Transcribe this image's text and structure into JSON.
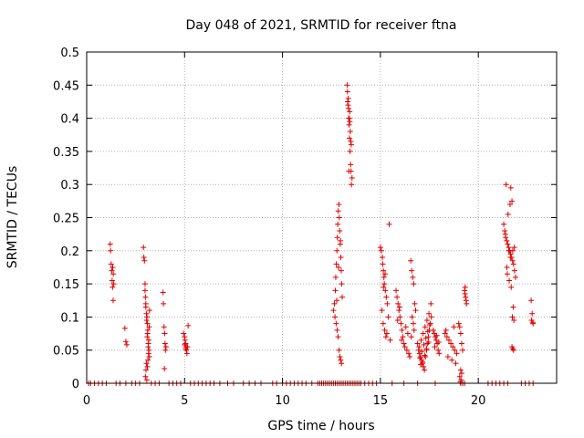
{
  "chart_data": {
    "type": "scatter",
    "title": "Day 048 of 2021, SRMTID for receiver ftna",
    "xlabel": "GPS time / hours",
    "ylabel": "SRMTID / TECUs",
    "xlim": [
      0,
      24
    ],
    "ylim": [
      0,
      0.5
    ],
    "grid": true,
    "marker": "+",
    "color": "#e00000",
    "x_ticks": [
      0,
      5,
      10,
      15,
      20
    ],
    "x_tick_labels": [
      "0",
      "5",
      "10",
      "15",
      "20"
    ],
    "y_ticks": [
      0,
      0.05,
      0.1,
      0.15,
      0.2,
      0.25,
      0.3,
      0.35,
      0.4,
      0.45,
      0.5
    ],
    "y_tick_labels": [
      "0",
      "0.05",
      "0.1",
      "0.15",
      "0.2",
      "0.25",
      "0.3",
      "0.35",
      "0.4",
      "0.45",
      "0.5"
    ],
    "series": [
      {
        "name": "SRMTID",
        "x": [
          0.1,
          0.2,
          0.4,
          0.6,
          0.8,
          1.0,
          1.5,
          1.7,
          2.0,
          2.3,
          2.5,
          2.7,
          3.3,
          3.5,
          3.7,
          4.2,
          4.4,
          4.6,
          4.8,
          5.3,
          5.5,
          5.7,
          5.9,
          6.1,
          6.3,
          6.5,
          6.8,
          7.2,
          7.5,
          8.0,
          8.3,
          8.6,
          8.9,
          9.5,
          9.7,
          10.0,
          10.2,
          10.4,
          10.6,
          10.8,
          11.0,
          11.2,
          11.5,
          11.8,
          11.9,
          12.0,
          12.1,
          12.2,
          12.3,
          12.4,
          12.5,
          12.6,
          12.7,
          12.8,
          12.9,
          13.0,
          13.1,
          13.2,
          13.3,
          13.4,
          13.5,
          13.6,
          13.7,
          13.8,
          13.9,
          14.0,
          14.2,
          14.4,
          14.6,
          14.8,
          15.6,
          16.2,
          16.9,
          17.8,
          19.1,
          19.2,
          19.3,
          20.5,
          20.7,
          20.9,
          21.1,
          21.3,
          21.5,
          22.2,
          22.4,
          22.6,
          22.8,
          1.2,
          1.22,
          1.25,
          1.28,
          1.3,
          1.32,
          1.33,
          1.35,
          1.36,
          1.38,
          1.95,
          2.0,
          2.05,
          2.9,
          2.92,
          2.95,
          2.98,
          3.0,
          3.02,
          3.05,
          3.08,
          3.1,
          3.12,
          3.15,
          3.18,
          3.2,
          3.05,
          3.03,
          3.0,
          3.07,
          3.1,
          3.13,
          3.16,
          2.98,
          3.02,
          3.06,
          3.09,
          3.11,
          3.14,
          3.17,
          3.19,
          3.21,
          3.9,
          3.92,
          3.95,
          3.98,
          4.0,
          4.02,
          4.05,
          3.97,
          4.95,
          5.0,
          5.02,
          5.05,
          5.08,
          5.1,
          5.12,
          5.15,
          5.18,
          5.0,
          5.06,
          12.6,
          12.65,
          12.7,
          12.72,
          12.75,
          12.78,
          12.8,
          12.82,
          12.85,
          12.88,
          12.9,
          12.92,
          12.95,
          12.98,
          13.0,
          13.02,
          13.05,
          12.68,
          12.74,
          12.79,
          12.84,
          12.89,
          12.93,
          12.97,
          13.01,
          12.77,
          12.86,
          12.96,
          13.3,
          13.32,
          13.35,
          13.38,
          13.4,
          13.42,
          13.45,
          13.48,
          13.5,
          13.52,
          13.55,
          13.33,
          13.37,
          13.41,
          13.46,
          13.51,
          13.36,
          13.44,
          13.49,
          13.39,
          13.43,
          15.0,
          15.05,
          15.1,
          15.12,
          15.15,
          15.18,
          15.2,
          15.25,
          15.3,
          15.35,
          15.4,
          15.08,
          15.14,
          15.22,
          15.28,
          15.33,
          15.45,
          15.16,
          15.24,
          15.5,
          15.8,
          15.85,
          15.9,
          15.95,
          16.0,
          16.05,
          16.1,
          16.15,
          16.2,
          16.3,
          16.4,
          15.88,
          15.98,
          16.08,
          16.25,
          16.35,
          16.45,
          16.5,
          16.55,
          16.6,
          16.65,
          16.7,
          16.75,
          16.8,
          16.62,
          16.68,
          16.72,
          16.58,
          16.9,
          16.95,
          17.0,
          17.05,
          17.1,
          17.15,
          17.2,
          17.25,
          17.3,
          17.35,
          17.4,
          17.45,
          17.5,
          17.55,
          17.6,
          16.98,
          17.08,
          17.18,
          17.28,
          17.38,
          17.48,
          17.02,
          17.12,
          17.22,
          17.32,
          17.42,
          17.52,
          17.58,
          17.06,
          17.16,
          17.26,
          17.36,
          17.46,
          17.7,
          17.75,
          17.8,
          17.85,
          17.9,
          17.95,
          18.0,
          17.78,
          17.88,
          17.98,
          18.3,
          18.4,
          18.5,
          18.6,
          18.7,
          18.8,
          18.9,
          18.45,
          18.65,
          18.85,
          18.35,
          18.75,
          19.0,
          19.05,
          19.1,
          19.15,
          19.2,
          19.1,
          19.05,
          19.15,
          19.12,
          19.08,
          19.3,
          19.32,
          19.35,
          19.38,
          19.4,
          19.33,
          21.3,
          21.35,
          21.4,
          21.45,
          21.5,
          21.55,
          21.6,
          21.65,
          21.7,
          21.75,
          21.8,
          21.85,
          21.9,
          21.38,
          21.48,
          21.58,
          21.68,
          21.78,
          21.52,
          21.62,
          21.72,
          21.42,
          21.66,
          21.74,
          21.82,
          21.46,
          21.56,
          21.64,
          21.76,
          21.84,
          21.72,
          21.76,
          21.8,
          22.7,
          22.75,
          22.8,
          22.72,
          22.78
        ],
        "y": [
          0,
          0,
          0,
          0,
          0,
          0,
          0,
          0,
          0,
          0,
          0,
          0,
          0,
          0,
          0,
          0,
          0,
          0,
          0,
          0,
          0,
          0,
          0,
          0,
          0,
          0,
          0,
          0,
          0,
          0,
          0,
          0,
          0,
          0,
          0,
          0,
          0,
          0,
          0,
          0,
          0,
          0,
          0,
          0,
          0,
          0,
          0,
          0,
          0,
          0,
          0,
          0,
          0,
          0,
          0,
          0,
          0,
          0,
          0,
          0,
          0,
          0,
          0,
          0,
          0,
          0,
          0,
          0,
          0,
          0,
          0,
          0,
          0,
          0,
          0,
          0,
          0,
          0,
          0,
          0,
          0,
          0,
          0,
          0,
          0,
          0,
          0,
          0.21,
          0.2,
          0.18,
          0.17,
          0.155,
          0.145,
          0.175,
          0.125,
          0.165,
          0.15,
          0.083,
          0.063,
          0.058,
          0.205,
          0.19,
          0.185,
          0.14,
          0.13,
          0.12,
          0.105,
          0.1,
          0.09,
          0.08,
          0.06,
          0.05,
          0.04,
          0.03,
          0.02,
          0.01,
          0.005,
          0.025,
          0.035,
          0.045,
          0.15,
          0.115,
          0.095,
          0.07,
          0.075,
          0.055,
          0.065,
          0.085,
          0.11,
          0.137,
          0.12,
          0.085,
          0.075,
          0.06,
          0.05,
          0.055,
          0.022,
          0.075,
          0.07,
          0.065,
          0.06,
          0.055,
          0.05,
          0.045,
          0.055,
          0.087,
          0.058,
          0.052,
          0.11,
          0.12,
          0.14,
          0.16,
          0.18,
          0.2,
          0.22,
          0.24,
          0.26,
          0.27,
          0.25,
          0.23,
          0.21,
          0.19,
          0.17,
          0.15,
          0.13,
          0.1,
          0.09,
          0.08,
          0.07,
          0.05,
          0.04,
          0.035,
          0.03,
          0.125,
          0.175,
          0.215,
          0.45,
          0.44,
          0.42,
          0.4,
          0.39,
          0.37,
          0.35,
          0.33,
          0.32,
          0.3,
          0.31,
          0.425,
          0.415,
          0.4,
          0.38,
          0.36,
          0.43,
          0.395,
          0.365,
          0.32,
          0.41,
          0.205,
          0.2,
          0.19,
          0.18,
          0.17,
          0.16,
          0.15,
          0.14,
          0.13,
          0.12,
          0.1,
          0.11,
          0.09,
          0.08,
          0.07,
          0.075,
          0.24,
          0.145,
          0.165,
          0.065,
          0.14,
          0.13,
          0.12,
          0.11,
          0.1,
          0.09,
          0.08,
          0.07,
          0.06,
          0.085,
          0.075,
          0.095,
          0.115,
          0.065,
          0.055,
          0.05,
          0.045,
          0.04,
          0.185,
          0.17,
          0.16,
          0.15,
          0.12,
          0.11,
          0.1,
          0.09,
          0.08,
          0.07,
          0.06,
          0.05,
          0.045,
          0.04,
          0.035,
          0.03,
          0.025,
          0.02,
          0.04,
          0.05,
          0.06,
          0.07,
          0.08,
          0.09,
          0.1,
          0.055,
          0.065,
          0.075,
          0.085,
          0.095,
          0.105,
          0.038,
          0.048,
          0.058,
          0.068,
          0.078,
          0.088,
          0.12,
          0.028,
          0.032,
          0.042,
          0.052,
          0.062,
          0.08,
          0.075,
          0.07,
          0.065,
          0.06,
          0.05,
          0.045,
          0.055,
          0.072,
          0.062,
          0.075,
          0.07,
          0.065,
          0.06,
          0.055,
          0.05,
          0.045,
          0.04,
          0.035,
          0.03,
          0.08,
          0.085,
          0.09,
          0.085,
          0.075,
          0.06,
          0.05,
          0.02,
          0.01,
          0.015,
          0.005,
          0.002,
          0.14,
          0.135,
          0.13,
          0.125,
          0.12,
          0.145,
          0.24,
          0.23,
          0.22,
          0.215,
          0.21,
          0.205,
          0.2,
          0.195,
          0.19,
          0.185,
          0.18,
          0.17,
          0.16,
          0.225,
          0.165,
          0.155,
          0.145,
          0.115,
          0.255,
          0.27,
          0.275,
          0.3,
          0.295,
          0.1,
          0.095,
          0.175,
          0.2,
          0.19,
          0.2,
          0.205,
          0.055,
          0.052,
          0.05,
          0.125,
          0.105,
          0.09,
          0.095,
          0.092
        ]
      }
    ]
  }
}
